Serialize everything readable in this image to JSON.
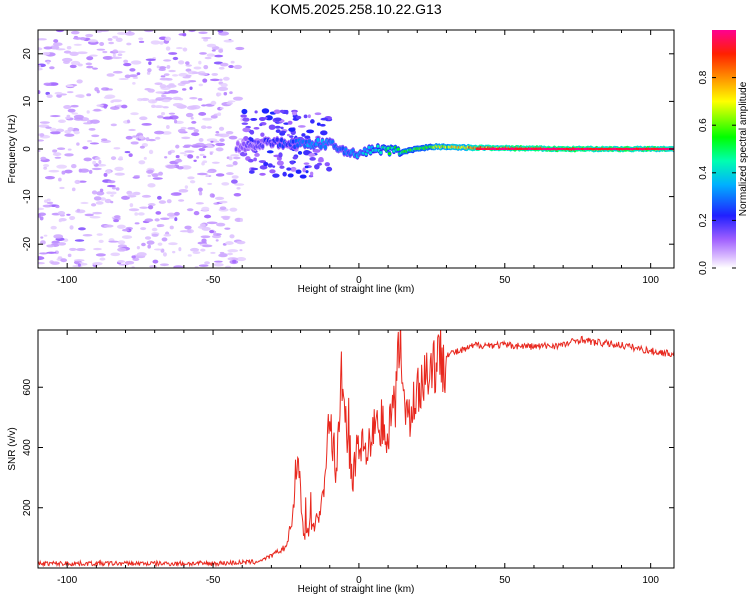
{
  "title": "KOM5.2025.258.10.22.G13",
  "chart_data": [
    {
      "type": "heatmap",
      "xlabel": "Height of straight line (km)",
      "ylabel": "Frequency (Hz)",
      "xlim": [
        -110,
        108
      ],
      "ylim": [
        -25,
        25
      ],
      "x_ticks": [
        -100,
        -50,
        0,
        50,
        100
      ],
      "y_ticks": [
        -20,
        -10,
        0,
        10,
        20
      ],
      "colorbar": {
        "label": "Normalized spectral amplitude",
        "range": [
          0,
          1
        ],
        "ticks": [
          0.0,
          0.2,
          0.4,
          0.6,
          0.8
        ],
        "tick_labels": [
          "0.0",
          "0.2",
          "0.4",
          "0.6",
          "0.8"
        ],
        "colors": [
          "#ffffff",
          "#b070ff",
          "#0000ff",
          "#00e0ff",
          "#00ff00",
          "#ffff00",
          "#ff8000",
          "#ff0000",
          "#ff00a0"
        ]
      },
      "ridge": {
        "description_points": [
          [
            -40,
            0.5
          ],
          [
            -30,
            1.5
          ],
          [
            -22,
            1.0
          ],
          [
            -15,
            1.2
          ],
          [
            -10,
            1.0
          ],
          [
            -5,
            -0.5
          ],
          [
            0,
            -1.0
          ],
          [
            5,
            0.0
          ],
          [
            15,
            -0.5
          ],
          [
            25,
            0.5
          ],
          [
            35,
            0.3
          ],
          [
            50,
            0.2
          ],
          [
            70,
            0.0
          ],
          [
            100,
            0.0
          ],
          [
            108,
            0.0
          ]
        ],
        "amplitude_points": [
          [
            -40,
            0.15
          ],
          [
            -25,
            0.25
          ],
          [
            -15,
            0.35
          ],
          [
            -5,
            0.3
          ],
          [
            0,
            0.35
          ],
          [
            10,
            0.5
          ],
          [
            20,
            0.55
          ],
          [
            30,
            0.7
          ],
          [
            40,
            0.85
          ],
          [
            60,
            0.95
          ],
          [
            100,
            0.95
          ],
          [
            108,
            0.9
          ]
        ]
      }
    },
    {
      "type": "line",
      "xlabel": "Height of straight line (km)",
      "ylabel": "SNR (v/v)",
      "xlim": [
        -110,
        108
      ],
      "ylim": [
        0,
        790
      ],
      "x_ticks": [
        -100,
        -50,
        0,
        50,
        100
      ],
      "y_ticks": [
        200,
        400,
        600
      ],
      "series": [
        {
          "name": "SNR",
          "color": "#e8281e",
          "x": [
            -110,
            -80,
            -50,
            -35,
            -30,
            -25,
            -23,
            -21,
            -19,
            -17,
            -15,
            -12,
            -10,
            -8,
            -6,
            -4,
            -2,
            0,
            3,
            6,
            9,
            12,
            14,
            16,
            18,
            20,
            25,
            30,
            35,
            40,
            50,
            60,
            70,
            76,
            80,
            90,
            100,
            108
          ],
          "y": [
            15,
            15,
            15,
            20,
            40,
            70,
            150,
            400,
            100,
            130,
            150,
            250,
            530,
            300,
            620,
            450,
            300,
            430,
            380,
            500,
            450,
            520,
            780,
            550,
            500,
            600,
            680,
            710,
            720,
            740,
            740,
            735,
            740,
            760,
            750,
            740,
            720,
            710
          ]
        }
      ]
    }
  ]
}
